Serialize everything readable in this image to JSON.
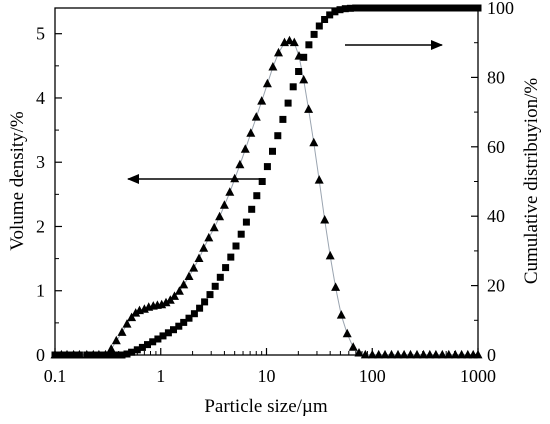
{
  "chart_data": {
    "type": "scatter",
    "xlabel": "Particle size/µm",
    "ylabel_left": "Volume density/%",
    "ylabel_right": "Cumulative distribuyion/%",
    "x_scale": "log",
    "xlim": [
      0.1,
      1000
    ],
    "ylim_left": [
      0,
      5.4
    ],
    "ylim_right": [
      0,
      100
    ],
    "x_ticks": [
      0.1,
      1,
      10,
      100,
      1000
    ],
    "x_tick_labels": [
      "0.1",
      "1",
      "10",
      "100",
      "1000"
    ],
    "y_left_ticks": [
      0,
      1,
      2,
      3,
      4,
      5
    ],
    "y_left_tick_labels": [
      "0",
      "1",
      "2",
      "3",
      "4",
      "5"
    ],
    "y_right_ticks": [
      0,
      20,
      40,
      60,
      80,
      100
    ],
    "y_right_tick_labels": [
      "0",
      "20",
      "40",
      "60",
      "80",
      "100"
    ],
    "grid": false,
    "legend": "none",
    "annotations": [
      {
        "type": "arrow",
        "direction": "left",
        "meaning": "volume density series uses left axis"
      },
      {
        "type": "arrow",
        "direction": "right",
        "meaning": "cumulative distribution series uses right axis"
      }
    ],
    "series": [
      {
        "marker": "triangle",
        "axis": "left",
        "color": "#000000",
        "line_color": "#9aa4b0",
        "x": [
          0.1,
          0.115,
          0.13,
          0.15,
          0.17,
          0.2,
          0.23,
          0.26,
          0.3,
          0.34,
          0.38,
          0.43,
          0.48,
          0.53,
          0.58,
          0.63,
          0.7,
          0.77,
          0.85,
          0.93,
          1.02,
          1.12,
          1.23,
          1.35,
          1.5,
          1.65,
          1.85,
          2.05,
          2.3,
          2.55,
          2.85,
          3.2,
          3.6,
          4.0,
          4.5,
          5.0,
          5.6,
          6.3,
          7.1,
          8.0,
          9.0,
          10.2,
          11.5,
          13.0,
          14.8,
          16.5,
          18.3,
          20.3,
          22.5,
          25.0,
          28.0,
          31.5,
          35.5,
          40.0,
          45.0,
          51.0,
          58.0,
          66.0,
          75.0,
          86.0,
          100,
          115,
          132,
          152,
          175,
          200,
          230,
          265,
          305,
          350,
          400,
          460,
          530,
          610,
          700,
          800,
          900,
          1000
        ],
        "y": [
          0,
          0,
          0,
          0,
          0,
          0,
          0,
          0,
          0,
          0.09,
          0.22,
          0.35,
          0.48,
          0.58,
          0.65,
          0.69,
          0.71,
          0.74,
          0.76,
          0.77,
          0.78,
          0.81,
          0.85,
          0.91,
          0.99,
          1.09,
          1.22,
          1.35,
          1.5,
          1.66,
          1.82,
          1.98,
          2.15,
          2.33,
          2.53,
          2.74,
          2.96,
          3.2,
          3.45,
          3.7,
          3.95,
          4.22,
          4.48,
          4.7,
          4.86,
          4.89,
          4.86,
          4.65,
          4.28,
          3.82,
          3.3,
          2.72,
          2.1,
          1.54,
          1.05,
          0.62,
          0.33,
          0.12,
          0.03,
          0,
          0,
          0,
          0,
          0,
          0,
          0,
          0,
          0,
          0,
          0,
          0,
          0,
          0,
          0,
          0,
          0,
          0,
          0
        ]
      },
      {
        "marker": "square",
        "axis": "right",
        "color": "#000000",
        "x": [
          0.1,
          0.115,
          0.13,
          0.15,
          0.17,
          0.2,
          0.23,
          0.26,
          0.3,
          0.34,
          0.38,
          0.43,
          0.48,
          0.53,
          0.6,
          0.67,
          0.75,
          0.84,
          0.94,
          1.05,
          1.18,
          1.32,
          1.48,
          1.65,
          1.85,
          2.08,
          2.33,
          2.6,
          2.92,
          3.27,
          3.66,
          4.1,
          4.6,
          5.15,
          5.77,
          6.46,
          7.24,
          8.1,
          9.1,
          10.2,
          11.4,
          12.8,
          14.3,
          16.0,
          17.9,
          20.1,
          22.5,
          25.2,
          28.2,
          31.6,
          35.4,
          39.6,
          44.3,
          49.6,
          55.6,
          62.2,
          69.7,
          78.0,
          87.4,
          97.9,
          110,
          125,
          140,
          157,
          176,
          197,
          221,
          248,
          278,
          311,
          348,
          390,
          437,
          489,
          548,
          614,
          687,
          770,
          862,
          965,
          1000
        ],
        "y": [
          0,
          0,
          0,
          0,
          0,
          0,
          0,
          0,
          0,
          0,
          0,
          0,
          0.3,
          0.8,
          1.5,
          2.2,
          3.0,
          3.8,
          4.6,
          5.5,
          6.4,
          7.3,
          8.3,
          9.4,
          10.6,
          11.9,
          13.5,
          15.3,
          17.4,
          19.8,
          22.4,
          25.2,
          28.2,
          31.4,
          34.8,
          38.3,
          42.0,
          45.9,
          50.0,
          54.3,
          58.7,
          63.2,
          67.9,
          72.6,
          77.3,
          81.7,
          85.8,
          89.4,
          92.4,
          94.8,
          96.7,
          98.0,
          98.9,
          99.5,
          99.8,
          99.9,
          100,
          100,
          100,
          100,
          100,
          100,
          100,
          100,
          100,
          100,
          100,
          100,
          100,
          100,
          100,
          100,
          100,
          100,
          100,
          100,
          100,
          100,
          100,
          100,
          100
        ]
      }
    ]
  }
}
